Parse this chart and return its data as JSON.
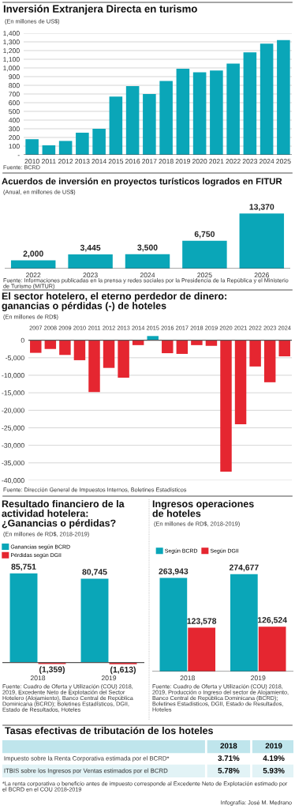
{
  "chart_data": [
    {
      "type": "bar",
      "title": "Inversión Extranjera Directa en turismo",
      "subtitle": "(En millones de US$)",
      "categories": [
        "2010",
        "2011",
        "2012",
        "2013",
        "2014",
        "2015",
        "2016",
        "2017",
        "2018",
        "2019",
        "2020",
        "2021",
        "2022",
        "2023",
        "2024",
        "2025"
      ],
      "values": [
        180,
        110,
        160,
        255,
        300,
        670,
        790,
        700,
        850,
        990,
        950,
        970,
        1050,
        1180,
        1280,
        1320
      ],
      "color": "#0aa6b8",
      "ylim": [
        0,
        1400
      ],
      "yticks": [
        {
          "value": 0,
          "label": "-"
        },
        100,
        200,
        300,
        400,
        500,
        600,
        700,
        800,
        900,
        {
          "value": 1000,
          "label": "1,000"
        },
        {
          "value": 1100,
          "label": "1,100"
        },
        {
          "value": 1200,
          "label": "1,200"
        },
        {
          "value": 1300,
          "label": "1,300"
        },
        {
          "value": 1400,
          "label": "1,400"
        }
      ],
      "grid": "y",
      "annotations": [
        "Fuente: BCRD"
      ]
    },
    {
      "type": "bar",
      "title": "Acuerdos de inversión en proyectos turísticos logrados en FITUR",
      "subtitle": "(Anual, en millones de US$)",
      "categories": [
        "2022",
        "2023",
        "2024",
        "2025",
        "2026"
      ],
      "values": [
        2000,
        3445,
        3500,
        6750,
        13370
      ],
      "value_labels": [
        "2,000",
        "3,445",
        "3,500",
        "6,750",
        "13,370"
      ],
      "color": "#0aa6b8",
      "annotations": [
        "Fuente: Informaciones publicadas en la prensa y redes sociales por la Presidencia de la República y el Ministerio de Turismo (MITUR)"
      ]
    },
    {
      "type": "bar",
      "title": "El sector hotelero, el eterno perdedor de dinero:\nganancias o pérdidas (-) de hoteles",
      "subtitle": "(En millones de RD$)",
      "categories": [
        "2007",
        "2008",
        "2009",
        "2010",
        "2011",
        "2012",
        "2013",
        "2014",
        "2015",
        "2016",
        "2017",
        "2018",
        "2019",
        "2020",
        "2021",
        "2022",
        "2023",
        "2024"
      ],
      "values": [
        -3600,
        -2500,
        -4200,
        -5700,
        -14800,
        -7900,
        -10700,
        -1400,
        1200,
        -3700,
        -3900,
        -1400,
        -1600,
        -37500,
        -24000,
        -7500,
        -12000,
        -4600
      ],
      "colors": [
        "#e52630",
        "#e52630",
        "#e52630",
        "#e52630",
        "#e52630",
        "#e52630",
        "#e52630",
        "#e52630",
        "#0aa6b8",
        "#e52630",
        "#e52630",
        "#e52630",
        "#e52630",
        "#e52630",
        "#e52630",
        "#e52630",
        "#e52630",
        "#e52630"
      ],
      "ylim": [
        -40000,
        1500
      ],
      "yticks": [
        0,
        {
          "value": -5000,
          "label": "-5,000"
        },
        {
          "value": -10000,
          "label": "-10,000"
        },
        {
          "value": -15000,
          "label": "-15,000"
        },
        {
          "value": -20000,
          "label": "-20,000"
        },
        {
          "value": -25000,
          "label": "-25,000"
        },
        {
          "value": -30000,
          "label": "-30,000"
        },
        {
          "value": -35000,
          "label": "-35,000"
        },
        {
          "value": -40000,
          "label": "-40,000"
        }
      ],
      "grid": "y",
      "annotations": [
        "Fuente: Dirección General de Impuestos Internos, Boletines Estadísticos"
      ]
    },
    {
      "type": "bar",
      "title": "Resultado financiero de la\nactividad hotelera:\n¿Ganancias o pérdidas?",
      "subtitle": "(En millones de RD$, 2018-2019)",
      "categories": [
        "2018",
        "2019"
      ],
      "legend": "top left",
      "series": [
        {
          "name": "Ganancias según BCRD",
          "color": "#0aa6b8",
          "values": [
            85751,
            80745
          ],
          "value_labels": [
            "85,751",
            "80,745"
          ]
        },
        {
          "name": "Pérdidas según DGII",
          "color": "#e52630",
          "values": [
            -1359,
            -1613
          ],
          "value_labels": [
            "(1,359)",
            "(1,613)"
          ]
        }
      ],
      "annotations": [
        "Fuente: Cuadro de Oferta y Utilización (COU) 2018, 2019, Excedente Neto de Explotación del Sector Hotelero (Alojamiento), Banco Central de República Dominicana (BCRD); Boletines Estadísticos, DGII, Estado de Resultados, Hoteles"
      ]
    },
    {
      "type": "bar",
      "title": "Ingresos operaciones\nde hoteles",
      "subtitle": "(En millones de RD$, 2018-2019)",
      "categories": [
        "2018",
        "2019"
      ],
      "legend": "top left",
      "series": [
        {
          "name": "Según BCRD",
          "color": "#0aa6b8",
          "values": [
            263943,
            274677
          ],
          "value_labels": [
            "263,943",
            "274,677"
          ]
        },
        {
          "name": "Según DGII",
          "color": "#e52630",
          "values": [
            123578,
            126524
          ],
          "value_labels": [
            "123,578",
            "126,524"
          ]
        }
      ],
      "annotations": [
        "Fuente: Cuadro de Oferta y Utilización (COU) 2018, 2019, Producción o Ingreso del sector de Alojamiento, Banco Central de República Dominicana (BCRD); Boletines Estadísticos, DGII, Estado de Resultados, Hoteles"
      ]
    },
    {
      "type": "other",
      "title": "Tasas efectivas de tributación de los hoteles",
      "categories": [
        "2018",
        "2019"
      ],
      "y_categories": [
        "Impuesto sobre la Renta Corporativa estimada por el BCRD*",
        "ITBIS sobre los Ingresos por Ventas estimados por el BCRD"
      ],
      "cell_labels": [
        [
          "3.71%",
          "4.19%"
        ],
        [
          "5.78%",
          "5.93%"
        ]
      ],
      "annotations": [
        "*La renta corporativa o beneficio antes de impuesto corresponde al Excedente Neto de Explotación estimado por el BCRD en el COU 2018-2019",
        "Infografía: José M. Medrano"
      ]
    }
  ]
}
